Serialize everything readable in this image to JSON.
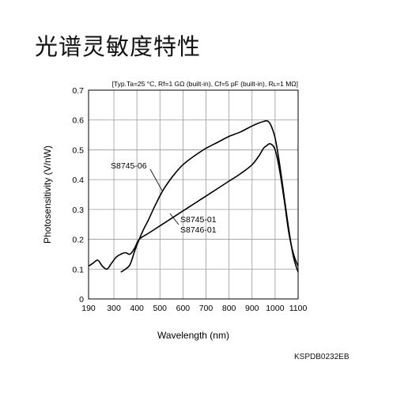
{
  "page": {
    "title": "光谱灵敏度特性",
    "document_code": "KSPDB0232EB"
  },
  "chart_data": {
    "type": "line",
    "title": "",
    "conditions": "[Typ.Ta=25 °C, Rf=1 GΩ (built-in), Cf=5 pF (built-in), Rʟ=1 MΩ]",
    "xlabel": "Wavelength (nm)",
    "ylabel": "Photosensitivity (V/nW)",
    "xlim": [
      190,
      1100
    ],
    "ylim": [
      0,
      0.7
    ],
    "xticks": [
      190,
      300,
      400,
      500,
      600,
      700,
      800,
      900,
      1000,
      1100
    ],
    "yticks": [
      0,
      0.1,
      0.2,
      0.3,
      0.4,
      0.5,
      0.6,
      0.7
    ],
    "ytick_labels": [
      "0",
      "0.1",
      "0.2",
      "0.3",
      "0.4",
      "0.5",
      "0.6",
      "0.7"
    ],
    "grid": true,
    "series": [
      {
        "name": "S8745-01",
        "label_lines": [
          "S8745-01",
          "S8746-01"
        ],
        "x": [
          190,
          210,
          230,
          250,
          270,
          290,
          310,
          330,
          350,
          370,
          390,
          410,
          450,
          500,
          550,
          600,
          650,
          700,
          750,
          800,
          850,
          900,
          930,
          950,
          965,
          980,
          1000,
          1020,
          1040,
          1060,
          1080,
          1100
        ],
        "y": [
          0.11,
          0.12,
          0.13,
          0.11,
          0.1,
          0.12,
          0.14,
          0.15,
          0.155,
          0.15,
          0.17,
          0.2,
          0.22,
          0.245,
          0.27,
          0.295,
          0.32,
          0.345,
          0.37,
          0.395,
          0.42,
          0.45,
          0.48,
          0.505,
          0.515,
          0.52,
          0.5,
          0.43,
          0.33,
          0.22,
          0.15,
          0.11
        ]
      },
      {
        "name": "S8745-06",
        "label_lines": [
          "S8745-06"
        ],
        "x": [
          330,
          350,
          370,
          390,
          410,
          430,
          450,
          480,
          510,
          540,
          570,
          600,
          650,
          700,
          750,
          800,
          850,
          900,
          930,
          950,
          965,
          980,
          1000,
          1020,
          1040,
          1060,
          1080,
          1100
        ],
        "y": [
          0.09,
          0.1,
          0.115,
          0.16,
          0.2,
          0.235,
          0.265,
          0.315,
          0.36,
          0.395,
          0.425,
          0.45,
          0.48,
          0.505,
          0.525,
          0.545,
          0.56,
          0.58,
          0.59,
          0.595,
          0.597,
          0.585,
          0.54,
          0.45,
          0.34,
          0.23,
          0.14,
          0.09
        ]
      }
    ]
  }
}
